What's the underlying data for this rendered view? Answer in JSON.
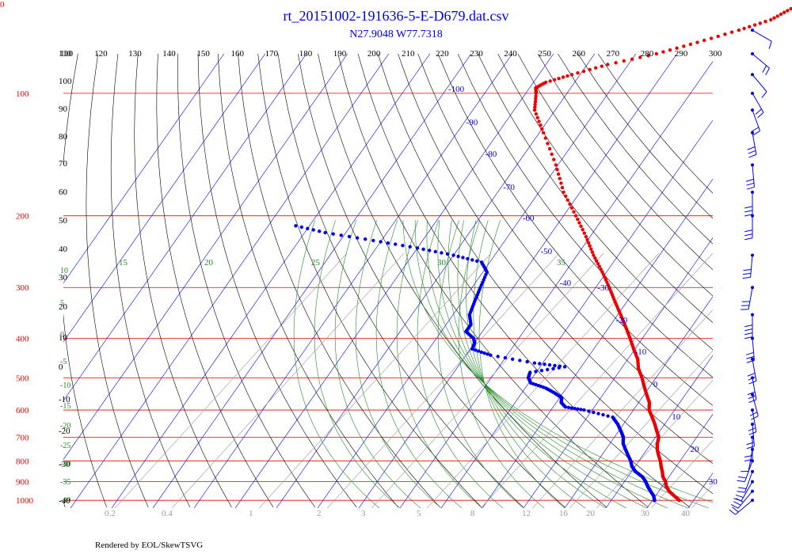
{
  "title": "rt_20151002-191636-5-E-D679.dat.csv",
  "subtitle": "N27.9048 W77.7318",
  "corner_mark": "0",
  "footer": "Rendered by EOL/SkewTSVG",
  "colors": {
    "temperature": "#ee0000",
    "dewpoint": "#0000ee",
    "isotherm": "#0000ee",
    "isobar": "#ee0000",
    "dry_adiabat": "#000000",
    "moist_adiabat": "#228b22",
    "mixing_ratio": "#999999",
    "wind_barb": "#0000ee",
    "text_black": "#000000",
    "text_green": "#228b22",
    "text_gray": "#999999"
  },
  "chart_data": {
    "type": "skew-t",
    "axes": {
      "pressure_ticks": [
        100,
        200,
        300,
        400,
        500,
        600,
        700,
        800,
        900,
        1000
      ],
      "isotherm_labels": [
        -100,
        -90,
        -80,
        -70,
        -60,
        -50,
        -40,
        -30,
        -20,
        -10,
        0,
        10,
        20,
        30
      ],
      "potential_temperature_ticks": [
        110,
        120,
        130,
        140,
        150,
        160,
        170,
        180,
        190,
        200,
        210,
        220,
        230,
        240,
        250,
        260,
        270,
        280,
        290,
        300
      ],
      "dry_adiabat_left_labels": [
        110,
        100,
        90,
        80,
        70,
        60,
        50,
        40,
        30,
        20,
        10,
        0,
        -10,
        -20,
        -30,
        -40
      ],
      "moist_adiabat_labels": [
        15,
        20,
        25,
        30,
        35
      ],
      "moist_adiabat_left_labels": [
        10,
        5,
        0,
        -5,
        -10,
        -15,
        -20,
        -25,
        -30,
        -35,
        -40
      ],
      "mixing_ratio_labels": [
        "0.2",
        "0.4",
        "1",
        "2",
        "3",
        "5",
        "8",
        "12",
        "16",
        "20",
        "30",
        "40"
      ],
      "pressure_range": [
        100,
        1000
      ],
      "log_pressure": true
    },
    "temperature_profile": [
      [
        1000,
        26.5
      ],
      [
        975,
        24.5
      ],
      [
        950,
        22.5
      ],
      [
        925,
        21.0
      ],
      [
        900,
        20.0
      ],
      [
        875,
        18.5
      ],
      [
        850,
        17.5
      ],
      [
        825,
        16.3
      ],
      [
        800,
        15.2
      ],
      [
        775,
        13.8
      ],
      [
        750,
        12.5
      ],
      [
        725,
        11.5
      ],
      [
        700,
        10.8
      ],
      [
        675,
        9.2
      ],
      [
        650,
        7.6
      ],
      [
        625,
        5.8
      ],
      [
        600,
        3.8
      ],
      [
        575,
        2.6
      ],
      [
        550,
        0.6
      ],
      [
        525,
        -1.4
      ],
      [
        500,
        -3.4
      ],
      [
        475,
        -5.8
      ],
      [
        450,
        -7.6
      ],
      [
        425,
        -10.3
      ],
      [
        400,
        -13.0
      ],
      [
        375,
        -16.0
      ],
      [
        350,
        -19.3
      ],
      [
        325,
        -22.9
      ],
      [
        300,
        -26.7
      ],
      [
        275,
        -31.0
      ],
      [
        250,
        -36.0
      ],
      [
        225,
        -41.0
      ],
      [
        200,
        -47.0
      ],
      [
        175,
        -54.0
      ],
      [
        150,
        -60.5
      ],
      [
        125,
        -69.0
      ],
      [
        110,
        -75.0
      ],
      [
        100,
        -77.5
      ],
      [
        97,
        -78.5
      ],
      [
        94,
        -77.0
      ],
      [
        90,
        -72.0
      ],
      [
        85,
        -65.0
      ],
      [
        80,
        -55.0
      ],
      [
        75,
        -47.0
      ],
      [
        70,
        -39.0
      ],
      [
        66,
        -33.0
      ],
      [
        62,
        -30.0
      ],
      [
        58,
        -25.0
      ],
      [
        55,
        -20.0
      ],
      [
        52,
        -18.0
      ]
    ],
    "dewpoint_profile": [
      [
        1000,
        20.5
      ],
      [
        975,
        19.5
      ],
      [
        950,
        18.0
      ],
      [
        925,
        16.5
      ],
      [
        900,
        15.2
      ],
      [
        875,
        13.5
      ],
      [
        850,
        11.0
      ],
      [
        825,
        9.2
      ],
      [
        800,
        8.0
      ],
      [
        775,
        6.4
      ],
      [
        750,
        4.8
      ],
      [
        725,
        3.2
      ],
      [
        700,
        2.2
      ],
      [
        675,
        0.5
      ],
      [
        650,
        -1.4
      ],
      [
        625,
        -3.8
      ],
      [
        600,
        -12.0
      ],
      [
        590,
        -17.0
      ],
      [
        575,
        -18.8
      ],
      [
        560,
        -19.5
      ],
      [
        545,
        -22.0
      ],
      [
        530,
        -25.0
      ],
      [
        515,
        -29.5
      ],
      [
        500,
        -31.0
      ],
      [
        485,
        -31.5
      ],
      [
        470,
        -24.0
      ],
      [
        460,
        -32.0
      ],
      [
        440,
        -44.0
      ],
      [
        425,
        -49.5
      ],
      [
        410,
        -50.0
      ],
      [
        400,
        -51.0
      ],
      [
        385,
        -54.0
      ],
      [
        370,
        -54.0
      ],
      [
        350,
        -56.0
      ],
      [
        325,
        -57.0
      ],
      [
        300,
        -58.0
      ],
      [
        275,
        -59.0
      ],
      [
        260,
        -62.0
      ],
      [
        250,
        -70.0
      ],
      [
        240,
        -80.0
      ],
      [
        230,
        -92.0
      ],
      [
        220,
        -105.0
      ],
      [
        210,
        -115.0
      ]
    ],
    "wind_barbs": [
      {
        "p": 1000,
        "spd": 20,
        "dir": 230
      },
      {
        "p": 950,
        "spd": 25,
        "dir": 220
      },
      {
        "p": 900,
        "spd": 20,
        "dir": 210
      },
      {
        "p": 850,
        "spd": 15,
        "dir": 200
      },
      {
        "p": 800,
        "spd": 15,
        "dir": 200
      },
      {
        "p": 750,
        "spd": 10,
        "dir": 190
      },
      {
        "p": 700,
        "spd": 15,
        "dir": 180
      },
      {
        "p": 650,
        "spd": 15,
        "dir": 175
      },
      {
        "p": 600,
        "spd": 20,
        "dir": 170
      },
      {
        "p": 550,
        "spd": 20,
        "dir": 165
      },
      {
        "p": 500,
        "spd": 25,
        "dir": 170
      },
      {
        "p": 450,
        "spd": 25,
        "dir": 170
      },
      {
        "p": 400,
        "spd": 30,
        "dir": 175
      },
      {
        "p": 350,
        "spd": 35,
        "dir": 180
      },
      {
        "p": 300,
        "spd": 30,
        "dir": 190
      },
      {
        "p": 250,
        "spd": 25,
        "dir": 185
      },
      {
        "p": 200,
        "spd": 25,
        "dir": 180
      },
      {
        "p": 175,
        "spd": 30,
        "dir": 180
      },
      {
        "p": 150,
        "spd": 30,
        "dir": 175
      },
      {
        "p": 125,
        "spd": 30,
        "dir": 170
      },
      {
        "p": 110,
        "spd": 20,
        "dir": 160
      },
      {
        "p": 100,
        "spd": 15,
        "dir": 150
      },
      {
        "p": 90,
        "spd": 10,
        "dir": 140
      },
      {
        "p": 80,
        "spd": 15,
        "dir": 130
      },
      {
        "p": 70,
        "spd": 10,
        "dir": 120
      }
    ]
  }
}
